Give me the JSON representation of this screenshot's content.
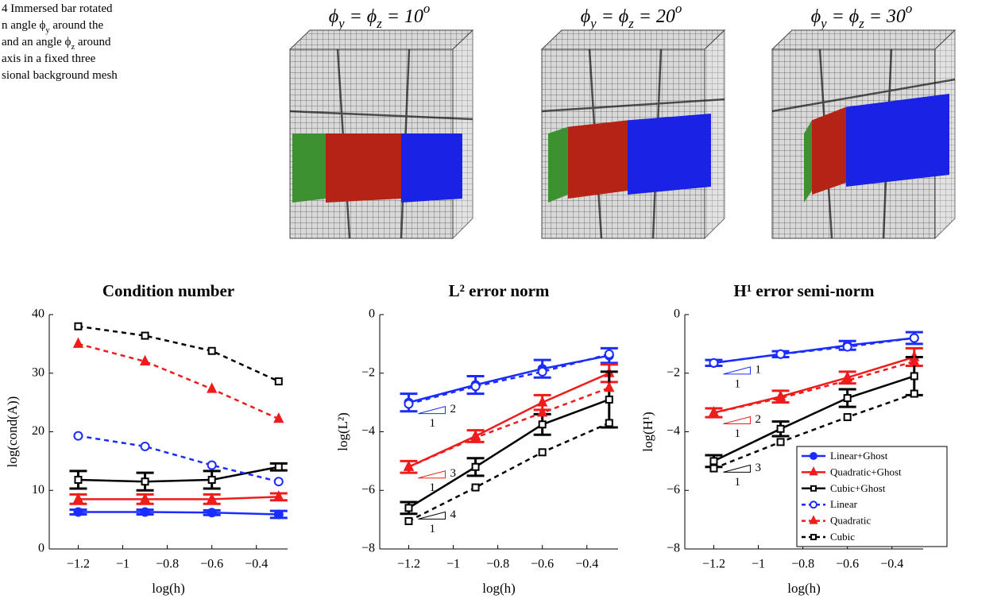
{
  "caption": [
    [
      "4  Immersed bar rotated"
    ],
    [
      "n angle ϕ",
      "y",
      " around the"
    ],
    [
      " and an angle ϕ",
      "z",
      " around"
    ],
    [
      "axis in a fixed three"
    ],
    [
      "sional background mesh"
    ]
  ],
  "panels": [
    {
      "title": [
        "ϕ",
        "y",
        " = ϕ",
        "z",
        " = 10",
        "o"
      ]
    },
    {
      "title": [
        "ϕ",
        "y",
        " = ϕ",
        "z",
        " = 20",
        "o"
      ]
    },
    {
      "title": [
        "ϕ",
        "y",
        " = ϕ",
        "z",
        " = 30",
        "o"
      ]
    }
  ],
  "chart_data": [
    {
      "type": "line",
      "title": "Condition number",
      "xlabel": "log(h)",
      "ylabel": "log(cond(A))",
      "x": [
        -1.2,
        -0.9,
        -0.6,
        -0.3
      ],
      "xlim": [
        -1.33,
        -0.26
      ],
      "xticks": [
        {
          "value": -1.2,
          "label": "−1.2"
        },
        {
          "value": -1,
          "label": "−1"
        },
        {
          "value": -0.8,
          "label": "−0.8"
        },
        {
          "value": -0.6,
          "label": "−0.6"
        },
        {
          "value": -0.4,
          "label": "−0.4"
        }
      ],
      "ylim": [
        0,
        40
      ],
      "yticks": [
        0,
        10,
        20,
        30,
        40
      ],
      "series": [
        {
          "name": "Linear+Ghost",
          "color": "#1a2cff",
          "marker": "circle",
          "filled": true,
          "dashed": false,
          "values": [
            6.3,
            6.3,
            6.2,
            5.9
          ],
          "errors": [
            0.4,
            0.4,
            0.4,
            0.6
          ]
        },
        {
          "name": "Quadratic+Ghost",
          "color": "#f01c1c",
          "marker": "triangle",
          "filled": true,
          "dashed": false,
          "values": [
            8.5,
            8.5,
            8.5,
            8.9
          ],
          "errors": [
            0.8,
            0.8,
            0.8,
            0.6
          ]
        },
        {
          "name": "Cubic+Ghost",
          "color": "#000000",
          "marker": "square",
          "filled": false,
          "dashed": false,
          "values": [
            11.8,
            11.5,
            11.8,
            14.0
          ],
          "errors": [
            1.5,
            1.5,
            1.5,
            0.6
          ]
        },
        {
          "name": "Linear",
          "color": "#1a2cff",
          "marker": "circle",
          "filled": false,
          "dashed": true,
          "values": [
            19.3,
            17.5,
            14.3,
            11.5
          ]
        },
        {
          "name": "Quadratic",
          "color": "#f01c1c",
          "marker": "triangle",
          "filled": true,
          "dashed": true,
          "values": [
            35.0,
            32.0,
            27.3,
            22.2
          ]
        },
        {
          "name": "Cubic",
          "color": "#000000",
          "marker": "square",
          "filled": false,
          "dashed": true,
          "values": [
            38.0,
            36.4,
            33.8,
            28.6
          ]
        }
      ]
    },
    {
      "type": "line",
      "title": "L² error norm",
      "xlabel": "log(h)",
      "ylabel": "log(L²)",
      "x": [
        -1.2,
        -0.9,
        -0.6,
        -0.3
      ],
      "xlim": [
        -1.33,
        -0.26
      ],
      "xticks": [
        {
          "value": -1.2,
          "label": "−1.2"
        },
        {
          "value": -1,
          "label": "−1"
        },
        {
          "value": -0.8,
          "label": "−0.8"
        },
        {
          "value": -0.6,
          "label": "−0.6"
        },
        {
          "value": -0.4,
          "label": "−0.4"
        }
      ],
      "ylim": [
        -8,
        0
      ],
      "yticks": [
        {
          "value": -8,
          "label": "−8"
        },
        {
          "value": -6,
          "label": "−6"
        },
        {
          "value": -4,
          "label": "−4"
        },
        {
          "value": -2,
          "label": "−2"
        },
        0
      ],
      "series": [
        {
          "name": "Linear+Ghost",
          "color": "#1a2cff",
          "marker": "circle",
          "filled": true,
          "dashed": false,
          "values": [
            -3.0,
            -2.4,
            -1.85,
            -1.4
          ],
          "errors": [
            0.3,
            0.3,
            0.3,
            0.25
          ],
          "slope_label": "2",
          "run_label": "1"
        },
        {
          "name": "Quadratic+Ghost",
          "color": "#f01c1c",
          "marker": "triangle",
          "filled": true,
          "dashed": false,
          "values": [
            -5.2,
            -4.15,
            -3.0,
            -2.0
          ],
          "errors": [
            0.2,
            0.2,
            0.25,
            0.3
          ],
          "slope_label": "3",
          "run_label": "1"
        },
        {
          "name": "Cubic+Ghost",
          "color": "#000000",
          "marker": "square",
          "filled": false,
          "dashed": false,
          "values": [
            -6.6,
            -5.2,
            -3.75,
            -2.9
          ],
          "errors": [
            0.2,
            0.3,
            0.35,
            0.95
          ],
          "slope_label": "4",
          "run_label": "1"
        },
        {
          "name": "Linear",
          "color": "#1a2cff",
          "marker": "circle",
          "filled": false,
          "dashed": true,
          "values": [
            -3.05,
            -2.45,
            -1.95,
            -1.35
          ]
        },
        {
          "name": "Quadratic",
          "color": "#f01c1c",
          "marker": "triangle",
          "filled": true,
          "dashed": true,
          "values": [
            -5.2,
            -4.2,
            -3.35,
            -2.5
          ]
        },
        {
          "name": "Cubic",
          "color": "#000000",
          "marker": "square",
          "filled": false,
          "dashed": true,
          "values": [
            -7.05,
            -5.9,
            -4.7,
            -3.7
          ]
        }
      ]
    },
    {
      "type": "line",
      "title": "H¹ error semi-norm",
      "xlabel": "log(h)",
      "ylabel": "log(H¹)",
      "x": [
        -1.2,
        -0.9,
        -0.6,
        -0.3
      ],
      "xlim": [
        -1.33,
        -0.26
      ],
      "xticks": [
        {
          "value": -1.2,
          "label": "−1.2"
        },
        {
          "value": -1,
          "label": "−1"
        },
        {
          "value": -0.8,
          "label": "−0.8"
        },
        {
          "value": -0.6,
          "label": "−0.6"
        },
        {
          "value": -0.4,
          "label": "−0.4"
        }
      ],
      "ylim": [
        -8,
        0
      ],
      "yticks": [
        {
          "value": -8,
          "label": "−8"
        },
        {
          "value": -6,
          "label": "−6"
        },
        {
          "value": -4,
          "label": "−4"
        },
        {
          "value": -2,
          "label": "−2"
        },
        0
      ],
      "legend": "lower right",
      "series": [
        {
          "name": "Linear+Ghost",
          "color": "#1a2cff",
          "marker": "circle",
          "filled": true,
          "dashed": false,
          "values": [
            -1.65,
            -1.35,
            -1.05,
            -0.8
          ],
          "errors": [
            0.1,
            0.1,
            0.15,
            0.2
          ],
          "slope_label": "1",
          "run_label": "1"
        },
        {
          "name": "Quadratic+Ghost",
          "color": "#f01c1c",
          "marker": "triangle",
          "filled": true,
          "dashed": false,
          "values": [
            -3.35,
            -2.8,
            -2.15,
            -1.45
          ],
          "errors": [
            0.15,
            0.2,
            0.2,
            0.3
          ],
          "slope_label": "2",
          "run_label": "1"
        },
        {
          "name": "Cubic+Ghost",
          "color": "#000000",
          "marker": "square",
          "filled": false,
          "dashed": false,
          "values": [
            -5.0,
            -3.9,
            -2.85,
            -2.1
          ],
          "errors": [
            0.2,
            0.25,
            0.3,
            0.65
          ],
          "slope_label": "3",
          "run_label": "1"
        },
        {
          "name": "Linear",
          "color": "#1a2cff",
          "marker": "circle",
          "filled": false,
          "dashed": true,
          "values": [
            -1.65,
            -1.35,
            -1.1,
            -0.8
          ]
        },
        {
          "name": "Quadratic",
          "color": "#f01c1c",
          "marker": "triangle",
          "filled": true,
          "dashed": true,
          "values": [
            -3.35,
            -2.85,
            -2.25,
            -1.6
          ]
        },
        {
          "name": "Cubic",
          "color": "#000000",
          "marker": "square",
          "filled": false,
          "dashed": true,
          "values": [
            -5.25,
            -4.35,
            -3.5,
            -2.7
          ]
        }
      ]
    }
  ]
}
